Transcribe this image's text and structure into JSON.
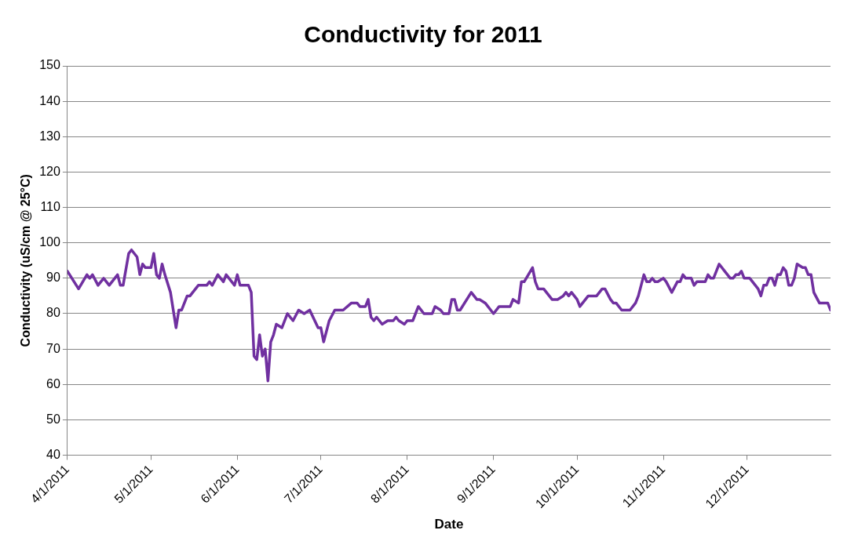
{
  "chart_data": {
    "type": "line",
    "title": "Conductivity for 2011",
    "xlabel": "Date",
    "ylabel": "Conductivity (uS/cm @ 25°C)",
    "x": [
      "2011-04-01",
      "2011-04-05",
      "2011-04-08",
      "2011-04-09",
      "2011-04-10",
      "2011-04-12",
      "2011-04-14",
      "2011-04-16",
      "2011-04-19",
      "2011-04-20",
      "2011-04-21",
      "2011-04-23",
      "2011-04-24",
      "2011-04-26",
      "2011-04-27",
      "2011-04-28",
      "2011-04-29",
      "2011-05-01",
      "2011-05-02",
      "2011-05-03",
      "2011-05-04",
      "2011-05-05",
      "2011-05-06",
      "2011-05-08",
      "2011-05-10",
      "2011-05-11",
      "2011-05-12",
      "2011-05-14",
      "2011-05-15",
      "2011-05-18",
      "2011-05-21",
      "2011-05-22",
      "2011-05-23",
      "2011-05-25",
      "2011-05-27",
      "2011-05-28",
      "2011-05-29",
      "2011-05-31",
      "2011-06-01",
      "2011-06-02",
      "2011-06-05",
      "2011-06-06",
      "2011-06-07",
      "2011-06-08",
      "2011-06-09",
      "2011-06-10",
      "2011-06-11",
      "2011-06-12",
      "2011-06-13",
      "2011-06-14",
      "2011-06-15",
      "2011-06-17",
      "2011-06-19",
      "2011-06-21",
      "2011-06-23",
      "2011-06-25",
      "2011-06-27",
      "2011-06-30",
      "2011-07-01",
      "2011-07-02",
      "2011-07-04",
      "2011-07-06",
      "2011-07-09",
      "2011-07-12",
      "2011-07-14",
      "2011-07-15",
      "2011-07-17",
      "2011-07-18",
      "2011-07-19",
      "2011-07-20",
      "2011-07-21",
      "2011-07-23",
      "2011-07-25",
      "2011-07-27",
      "2011-07-28",
      "2011-07-29",
      "2011-07-31",
      "2011-08-01",
      "2011-08-03",
      "2011-08-05",
      "2011-08-07",
      "2011-08-10",
      "2011-08-11",
      "2011-08-13",
      "2011-08-14",
      "2011-08-16",
      "2011-08-17",
      "2011-08-18",
      "2011-08-19",
      "2011-08-20",
      "2011-08-24",
      "2011-08-26",
      "2011-08-27",
      "2011-08-29",
      "2011-08-30",
      "2011-08-31",
      "2011-09-01",
      "2011-09-03",
      "2011-09-07",
      "2011-09-08",
      "2011-09-10",
      "2011-09-11",
      "2011-09-12",
      "2011-09-15",
      "2011-09-16",
      "2011-09-17",
      "2011-09-19",
      "2011-09-22",
      "2011-09-24",
      "2011-09-26",
      "2011-09-27",
      "2011-09-28",
      "2011-09-29",
      "2011-10-01",
      "2011-10-02",
      "2011-10-05",
      "2011-10-08",
      "2011-10-10",
      "2011-10-11",
      "2011-10-13",
      "2011-10-14",
      "2011-10-15",
      "2011-10-17",
      "2011-10-20",
      "2011-10-22",
      "2011-10-23",
      "2011-10-25",
      "2011-10-26",
      "2011-10-27",
      "2011-10-28",
      "2011-10-29",
      "2011-10-30",
      "2011-11-01",
      "2011-11-02",
      "2011-11-04",
      "2011-11-06",
      "2011-11-07",
      "2011-11-08",
      "2011-11-09",
      "2011-11-11",
      "2011-11-12",
      "2011-11-13",
      "2011-11-16",
      "2011-11-17",
      "2011-11-18",
      "2011-11-19",
      "2011-11-21",
      "2011-11-23",
      "2011-11-25",
      "2011-11-26",
      "2011-11-27",
      "2011-11-28",
      "2011-11-29",
      "2011-11-30",
      "2011-12-02",
      "2011-12-04",
      "2011-12-05",
      "2011-12-06",
      "2011-12-07",
      "2011-12-08",
      "2011-12-09",
      "2011-12-10",
      "2011-12-11",
      "2011-12-12",
      "2011-12-13",
      "2011-12-14",
      "2011-12-15",
      "2011-12-16",
      "2011-12-17",
      "2011-12-18",
      "2011-12-19",
      "2011-12-21",
      "2011-12-22",
      "2011-12-23",
      "2011-12-24",
      "2011-12-25",
      "2011-12-27",
      "2011-12-30",
      "2011-12-31"
    ],
    "series": [
      {
        "color": "#7030a0",
        "values": [
          92,
          87,
          91,
          90,
          91,
          88,
          90,
          88,
          91,
          88,
          88,
          97,
          98,
          96,
          91,
          94,
          93,
          93,
          97,
          91,
          90,
          94,
          91,
          86,
          76,
          81,
          81,
          85,
          85,
          88,
          88,
          89,
          88,
          91,
          89,
          91,
          90,
          88,
          91,
          88,
          88,
          86,
          68,
          67,
          74,
          68,
          70,
          61,
          72,
          74,
          77,
          76,
          80,
          78,
          81,
          80,
          81,
          76,
          76,
          72,
          78,
          81,
          81,
          83,
          83,
          82,
          82,
          84,
          79,
          78,
          79,
          77,
          78,
          78,
          79,
          78,
          77,
          78,
          78,
          82,
          80,
          80,
          82,
          81,
          80,
          80,
          84,
          84,
          81,
          81,
          86,
          84,
          84,
          83,
          82,
          81,
          80,
          82,
          82,
          84,
          83,
          89,
          89,
          93,
          89,
          87,
          87,
          84,
          84,
          85,
          86,
          85,
          86,
          84,
          82,
          85,
          85,
          87,
          87,
          84,
          83,
          83,
          81,
          81,
          83,
          85,
          91,
          89,
          89,
          90,
          89,
          89,
          90,
          89,
          86,
          89,
          89,
          91,
          90,
          90,
          88,
          89,
          89,
          91,
          90,
          90,
          94,
          92,
          90,
          90,
          91,
          91,
          92,
          90,
          90,
          88,
          87,
          85,
          88,
          88,
          90,
          90,
          88,
          91,
          91,
          93,
          92,
          88,
          88,
          90,
          94,
          93,
          93,
          91,
          91,
          86,
          83,
          83,
          81
        ]
      }
    ],
    "xlim": [
      "2011-04-01",
      "2011-12-31"
    ],
    "xticks": [
      {
        "value": "2011-04-01",
        "label": "4/1/2011"
      },
      {
        "value": "2011-05-01",
        "label": "5/1/2011"
      },
      {
        "value": "2011-06-01",
        "label": "6/1/2011"
      },
      {
        "value": "2011-07-01",
        "label": "7/1/2011"
      },
      {
        "value": "2011-08-01",
        "label": "8/1/2011"
      },
      {
        "value": "2011-09-01",
        "label": "9/1/2011"
      },
      {
        "value": "2011-10-01",
        "label": "10/1/2011"
      },
      {
        "value": "2011-11-01",
        "label": "11/1/2011"
      },
      {
        "value": "2011-12-01",
        "label": "12/1/2011"
      }
    ],
    "ylim": [
      40,
      150
    ],
    "yticks": [
      40,
      50,
      60,
      70,
      80,
      90,
      100,
      110,
      120,
      130,
      140,
      150
    ],
    "grid": "y",
    "marker": "none",
    "line_style": "solid"
  }
}
